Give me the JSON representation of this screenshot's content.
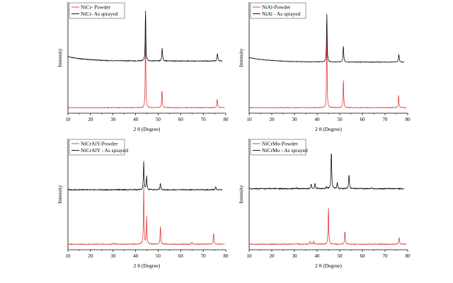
{
  "chart_data": [
    {
      "type": "line",
      "panel": "top-left",
      "xlabel": "2 θ (Degree)",
      "ylabel": "Intensity",
      "xlim": [
        10,
        80
      ],
      "xticks": [
        "10",
        "20",
        "30",
        "40",
        "50",
        "60",
        "70",
        "80"
      ],
      "legend_position": "top-left",
      "series": [
        {
          "name": "NiCr- Powder",
          "color": "#e03030",
          "baseline": 0.05,
          "noise": 0.003,
          "background": {
            "amp": 0.0,
            "decay": 8
          },
          "peaks": [
            [
              44.4,
              0.8,
              0.25
            ],
            [
              51.7,
              0.17,
              0.3
            ],
            [
              76.2,
              0.08,
              0.35
            ]
          ]
        },
        {
          "name": "NiCr- As sprayed",
          "color": "#000000",
          "baseline": 0.47,
          "noise": 0.004,
          "background": {
            "amp": 0.04,
            "decay": 8
          },
          "peaks": [
            [
              44.4,
              0.48,
              0.3
            ],
            [
              51.8,
              0.12,
              0.35
            ],
            [
              76.3,
              0.07,
              0.4
            ]
          ]
        }
      ]
    },
    {
      "type": "line",
      "panel": "top-right",
      "xlabel": "2 θ (Degree)",
      "ylabel": "Intensity",
      "xlim": [
        10,
        80
      ],
      "xticks": [
        "10",
        "20",
        "30",
        "40",
        "50",
        "60",
        "70",
        "80"
      ],
      "legend_position": "top-left",
      "series": [
        {
          "name": "NiAl-Powder",
          "color": "#e03030",
          "baseline": 0.05,
          "noise": 0.003,
          "background": {
            "amp": 0.0,
            "decay": 8
          },
          "peaks": [
            [
              44.3,
              0.8,
              0.25
            ],
            [
              51.6,
              0.26,
              0.3
            ],
            [
              76.0,
              0.11,
              0.35
            ]
          ]
        },
        {
          "name": "NiAl - As sprayed",
          "color": "#000000",
          "baseline": 0.46,
          "noise": 0.003,
          "background": {
            "amp": 0.04,
            "decay": 10
          },
          "peaks": [
            [
              44.3,
              0.44,
              0.3
            ],
            [
              51.6,
              0.15,
              0.35
            ],
            [
              76.1,
              0.07,
              0.4
            ]
          ]
        }
      ]
    },
    {
      "type": "line",
      "panel": "bottom-left",
      "xlabel": "2 θ (Degree)",
      "ylabel": "Intensity",
      "xlim": [
        10,
        80
      ],
      "xticks": [
        "10",
        "20",
        "30",
        "40",
        "50",
        "60",
        "70",
        "80"
      ],
      "legend_position": "top-left",
      "series": [
        {
          "name": "NiCrAlY-Powder",
          "color": "#e03030",
          "baseline": 0.05,
          "noise": 0.004,
          "background": {
            "amp": 0.0,
            "decay": 8
          },
          "peaks": [
            [
              43.6,
              0.53,
              0.3
            ],
            [
              44.9,
              0.25,
              0.3
            ],
            [
              51.0,
              0.17,
              0.3
            ],
            [
              65.0,
              0.02,
              0.4
            ],
            [
              74.6,
              0.1,
              0.35
            ],
            [
              30.2,
              0.01,
              0.4
            ]
          ]
        },
        {
          "name": "NiCrAlY - As sprayed",
          "color": "#000000",
          "baseline": 0.54,
          "noise": 0.005,
          "background": {
            "amp": 0.0,
            "decay": 8
          },
          "peaks": [
            [
              43.6,
              0.25,
              0.35
            ],
            [
              44.9,
              0.12,
              0.35
            ],
            [
              51.0,
              0.06,
              0.4
            ],
            [
              75.5,
              0.03,
              0.4
            ]
          ]
        }
      ]
    },
    {
      "type": "line",
      "panel": "bottom-right",
      "xlabel": "2 θ (Degree)",
      "ylabel": "Intensity",
      "xlim": [
        10,
        80
      ],
      "xticks": [
        "10",
        "20",
        "30",
        "40",
        "50",
        "60",
        "70",
        "80"
      ],
      "legend_position": "top-left",
      "series": [
        {
          "name": "NiCrMo-Powder",
          "color": "#e03030",
          "baseline": 0.05,
          "noise": 0.004,
          "background": {
            "amp": 0.0,
            "decay": 8
          },
          "peaks": [
            [
              45.0,
              0.35,
              0.3
            ],
            [
              52.3,
              0.13,
              0.3
            ],
            [
              37.0,
              0.03,
              0.35
            ],
            [
              38.5,
              0.03,
              0.35
            ],
            [
              76.2,
              0.06,
              0.35
            ],
            [
              31.0,
              0.01,
              0.4
            ]
          ]
        },
        {
          "name": "NiCrMo - As sprayed",
          "color": "#000000",
          "baseline": 0.55,
          "noise": 0.005,
          "background": {
            "amp": 0.0,
            "decay": 8
          },
          "peaks": [
            [
              46.3,
              0.35,
              0.35
            ],
            [
              54.1,
              0.13,
              0.35
            ],
            [
              37.4,
              0.04,
              0.35
            ],
            [
              39.1,
              0.05,
              0.35
            ],
            [
              48.9,
              0.06,
              0.3
            ],
            [
              44.2,
              0.02,
              0.35
            ],
            [
              30.8,
              0.01,
              0.4
            ],
            [
              64.0,
              0.01,
              0.4
            ]
          ]
        }
      ]
    }
  ]
}
